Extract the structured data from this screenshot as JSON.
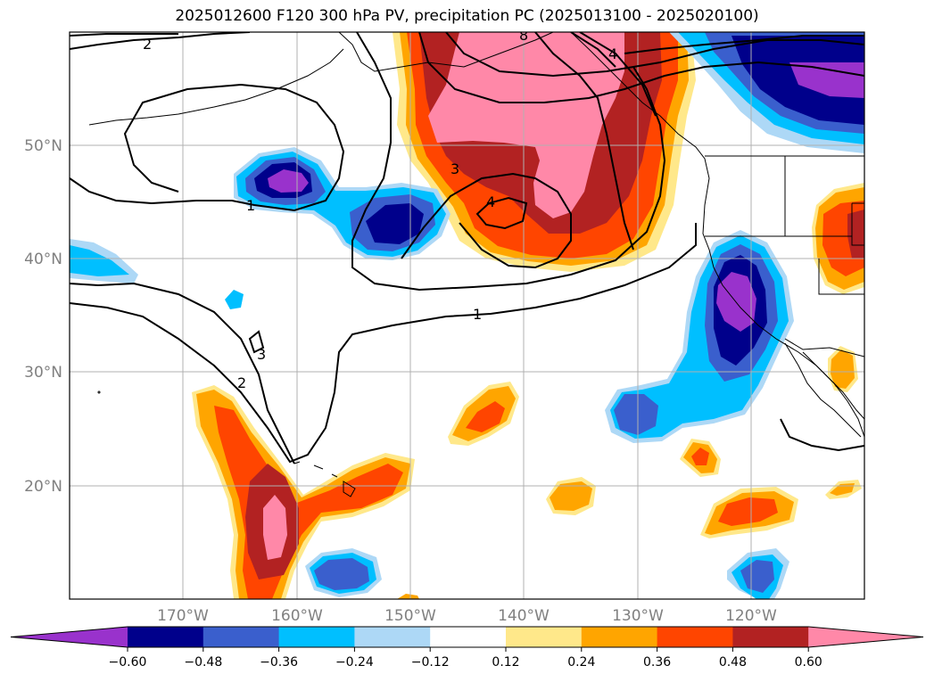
{
  "title": "2025012600 F120 300 hPa PV, precipitation PC (2025013100 - 2025020100)",
  "map": {
    "lat_labels": [
      "50°N",
      "40°N",
      "30°N",
      "20°N"
    ],
    "lon_labels": [
      "170°W",
      "160°W",
      "150°W",
      "140°W",
      "130°W",
      "120°W"
    ]
  },
  "contour_labels": [
    "2",
    "1",
    "3",
    "4",
    "1",
    "3",
    "2",
    "8",
    "4"
  ],
  "colorbar": {
    "ticks": [
      "−0.60",
      "−0.48",
      "−0.36",
      "−0.24",
      "−0.12",
      "0.12",
      "0.24",
      "0.36",
      "0.48",
      "0.60"
    ],
    "colors": [
      "#9932cc",
      "#00008b",
      "#3a5fcd",
      "#00bfff",
      "#add8f6",
      "#ffffff",
      "#ffe88a",
      "#ffa500",
      "#ff4500",
      "#b22222",
      "#ff88a8"
    ]
  }
}
